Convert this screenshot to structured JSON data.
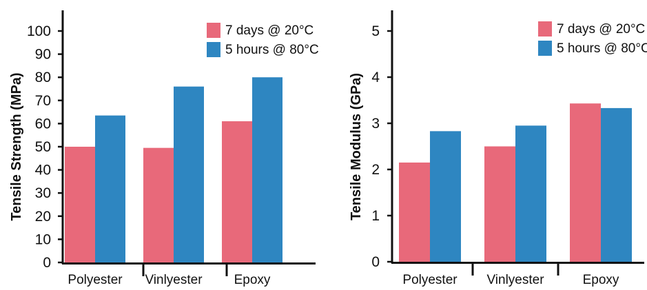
{
  "chart_data": [
    {
      "type": "bar",
      "title": "",
      "xlabel": "",
      "ylabel": "Tensile Strength (MPa)",
      "ylim": [
        0,
        100
      ],
      "yticks": [
        0,
        10,
        20,
        30,
        40,
        50,
        60,
        70,
        80,
        90,
        100
      ],
      "grid": false,
      "legend_position": "top-right",
      "categories": [
        "Polyester",
        "Vinlyester",
        "Epoxy"
      ],
      "series": [
        {
          "name": "7 days @ 20°C",
          "color": "#e8697a",
          "values": [
            50,
            49.5,
            61
          ]
        },
        {
          "name": "5 hours @ 80°C",
          "color": "#2e86c1",
          "values": [
            63.5,
            76,
            80
          ]
        }
      ]
    },
    {
      "type": "bar",
      "title": "",
      "xlabel": "",
      "ylabel": "Tensile Modulus (GPa)",
      "ylim": [
        0,
        5
      ],
      "yticks": [
        0,
        1,
        2,
        3,
        4,
        5
      ],
      "grid": false,
      "legend_position": "top-right",
      "categories": [
        "Polyester",
        "Vinlyester",
        "Epoxy"
      ],
      "series": [
        {
          "name": "7 days @ 20°C",
          "color": "#e8697a",
          "values": [
            2.15,
            2.5,
            3.43
          ]
        },
        {
          "name": "5 hours @ 80°C",
          "color": "#2e86c1",
          "values": [
            2.83,
            2.95,
            3.33
          ]
        }
      ]
    }
  ]
}
